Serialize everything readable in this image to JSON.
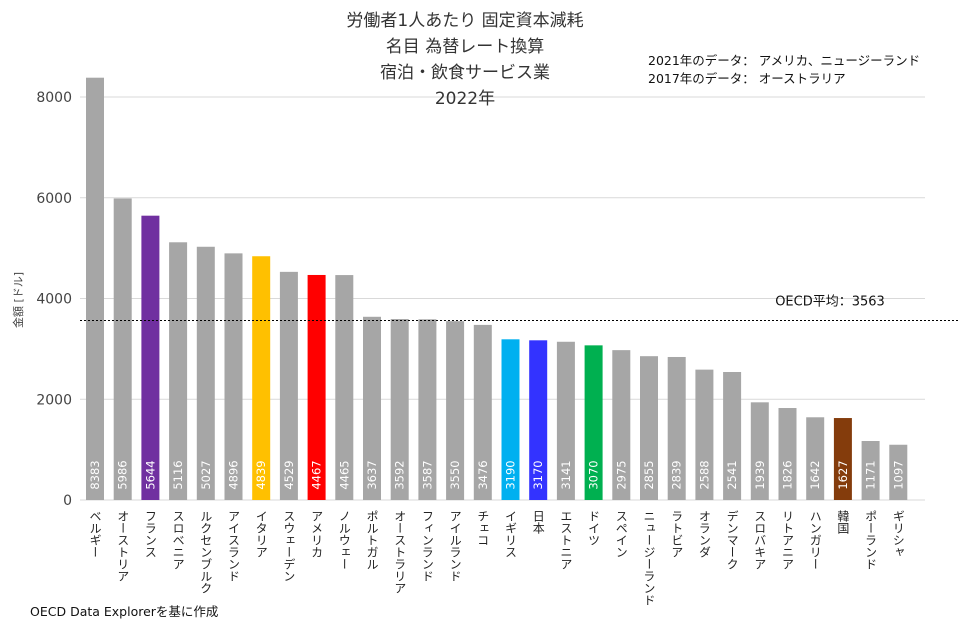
{
  "chart_data": {
    "type": "bar",
    "title_lines": [
      "労働者1人あたり 固定資本減耗",
      "名目 為替レート換算",
      "宿泊・飲食サービス業",
      "2022年"
    ],
    "notes": [
      "2021年のデータ： アメリカ、ニュージーランド",
      "2017年のデータ： オーストラリア"
    ],
    "ylabel": "金額 [ドル]",
    "ylim": [
      0,
      8000
    ],
    "yticks": [
      0,
      2000,
      4000,
      6000,
      8000
    ],
    "ytick_labels": [
      "0",
      "2000",
      "4000",
      "6000",
      "8000"
    ],
    "grid": true,
    "categories": [
      "ベルギー",
      "オーストリア",
      "フランス",
      "スロベニア",
      "ルクセンブルク",
      "アイスランド",
      "イタリア",
      "スウェーデン",
      "アメリカ",
      "ノルウェー",
      "ポルトガル",
      "オーストラリア",
      "フィンランド",
      "アイルランド",
      "チェコ",
      "イギリス",
      "日本",
      "エストニア",
      "ドイツ",
      "スペイン",
      "ニュージーランド",
      "ラトビア",
      "オランダ",
      "デンマーク",
      "スロバキア",
      "リトアニア",
      "ハンガリー",
      "韓国",
      "ポーランド",
      "ギリシャ"
    ],
    "values": [
      8383,
      5986,
      5644,
      5116,
      5027,
      4896,
      4839,
      4529,
      4467,
      4465,
      3637,
      3592,
      3587,
      3550,
      3476,
      3190,
      3170,
      3141,
      3070,
      2975,
      2855,
      2839,
      2588,
      2541,
      1939,
      1826,
      1642,
      1627,
      1171,
      1097
    ],
    "value_labels": [
      "8383",
      "5986",
      "5644",
      "5116",
      "5027",
      "4896",
      "4839",
      "4529",
      "4467",
      "4465",
      "3637",
      "3592",
      "3587",
      "3550",
      "3476",
      "3190",
      "3170",
      "3141",
      "3070",
      "2975",
      "2855",
      "2839",
      "2588",
      "2541",
      "1939",
      "1826",
      "1642",
      "1627",
      "1171",
      "1097"
    ],
    "colors": [
      "#a6a6a6",
      "#a6a6a6",
      "#7030a0",
      "#a6a6a6",
      "#a6a6a6",
      "#a6a6a6",
      "#ffc000",
      "#a6a6a6",
      "#ff0000",
      "#a6a6a6",
      "#a6a6a6",
      "#a6a6a6",
      "#a6a6a6",
      "#a6a6a6",
      "#a6a6a6",
      "#00b0f0",
      "#3333ff",
      "#a6a6a6",
      "#00b050",
      "#a6a6a6",
      "#a6a6a6",
      "#a6a6a6",
      "#a6a6a6",
      "#a6a6a6",
      "#a6a6a6",
      "#a6a6a6",
      "#a6a6a6",
      "#843c0c",
      "#a6a6a6",
      "#a6a6a6"
    ],
    "reference_line": {
      "value": 3563,
      "label": "OECD平均：3563"
    },
    "source": "OECD Data Explorerを基に作成"
  }
}
